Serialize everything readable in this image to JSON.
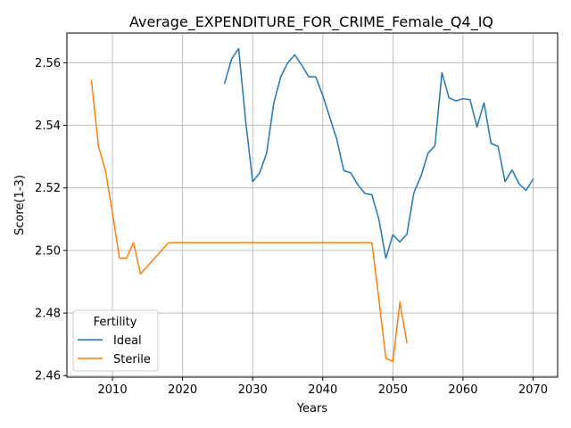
{
  "chart_data": {
    "type": "line",
    "title": "Average_EXPENDITURE_FOR_CRIME_Female_Q4_IQ",
    "xlabel": "Years",
    "ylabel": "Score(1-3)",
    "xlim": [
      2003.5,
      2073.5
    ],
    "ylim": [
      2.4595,
      2.5695
    ],
    "xticks": [
      2010,
      2020,
      2030,
      2040,
      2050,
      2060,
      2070
    ],
    "yticks": [
      2.46,
      2.48,
      2.5,
      2.52,
      2.54,
      2.56
    ],
    "xtick_labels": [
      "2010",
      "2020",
      "2030",
      "2040",
      "2050",
      "2060",
      "2070"
    ],
    "ytick_labels": [
      "2.46",
      "2.48",
      "2.50",
      "2.52",
      "2.54",
      "2.56"
    ],
    "grid": true,
    "legend": {
      "title": "Fertility",
      "placement": "lower-left"
    },
    "series": [
      {
        "name": "Ideal",
        "color": "#1f77b4",
        "x": [
          2026,
          2027,
          2028,
          2029,
          2030,
          2031,
          2032,
          2033,
          2034,
          2035,
          2036,
          2037,
          2038,
          2039,
          2040,
          2041,
          2042,
          2043,
          2044,
          2045,
          2046,
          2047,
          2048,
          2049,
          2050,
          2051,
          2052,
          2053,
          2054,
          2055,
          2056,
          2057,
          2058,
          2059,
          2060,
          2061,
          2062,
          2063,
          2064,
          2065,
          2066,
          2067,
          2068,
          2069,
          2070
        ],
        "y": [
          2.5535,
          2.5612,
          2.5645,
          2.5413,
          2.522,
          2.5248,
          2.5312,
          2.547,
          2.5555,
          2.56,
          2.5625,
          2.5592,
          2.5555,
          2.5555,
          2.5495,
          2.5425,
          2.5355,
          2.5255,
          2.5248,
          2.521,
          2.5182,
          2.5178,
          2.51,
          2.4975,
          2.505,
          2.5027,
          2.5052,
          2.5185,
          2.5237,
          2.531,
          2.5335,
          2.5568,
          2.5488,
          2.5478,
          2.5485,
          2.5482,
          2.5395,
          2.5472,
          2.5342,
          2.5333,
          2.522,
          2.5257,
          2.5213,
          2.5192,
          2.5228
        ]
      },
      {
        "name": "Sterile",
        "color": "#ff7f0e",
        "x": [
          2007,
          2008,
          2009,
          2010,
          2011,
          2012,
          2013,
          2014,
          2015,
          2016,
          2017,
          2018,
          2019,
          2020,
          2021,
          2022,
          2023,
          2024,
          2025,
          2026,
          2027,
          2028,
          2029,
          2030,
          2031,
          2032,
          2033,
          2034,
          2035,
          2036,
          2037,
          2038,
          2039,
          2040,
          2041,
          2042,
          2043,
          2044,
          2045,
          2046,
          2047,
          2048,
          2049,
          2050,
          2051,
          2052
        ],
        "y": [
          2.5542,
          2.5333,
          2.5255,
          2.512,
          2.4975,
          2.4975,
          2.5025,
          2.4925,
          2.495,
          2.4975,
          2.5,
          2.5025,
          2.5025,
          2.5025,
          2.5025,
          2.5025,
          2.5025,
          2.5025,
          2.5025,
          2.5025,
          2.5025,
          2.5025,
          2.5025,
          2.5025,
          2.5025,
          2.5025,
          2.5025,
          2.5025,
          2.5025,
          2.5025,
          2.5025,
          2.5025,
          2.5025,
          2.5025,
          2.5025,
          2.5025,
          2.5025,
          2.5025,
          2.5025,
          2.5025,
          2.5025,
          2.4845,
          2.4655,
          2.4645,
          2.4835,
          2.4705
        ]
      }
    ]
  }
}
